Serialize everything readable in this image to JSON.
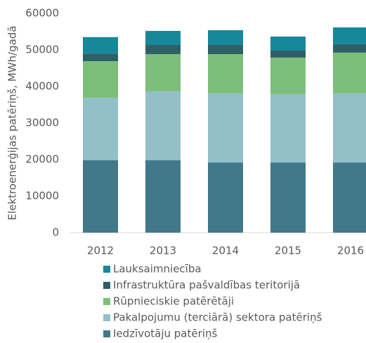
{
  "chart_data": {
    "type": "stacked_bar",
    "y_label": "Elektroenerģijas patēriņš, MWh/gadā",
    "categories": [
      "2012",
      "2013",
      "2014",
      "2015",
      "2016"
    ],
    "series": [
      {
        "name": "Iedzīvotāju patēriņš",
        "color": "#41788a",
        "values": [
          19800,
          19800,
          19200,
          19200,
          19200
        ]
      },
      {
        "name": "Pakalpojumu (terciārā) sektora patēriņš",
        "color": "#93bfc9",
        "values": [
          17100,
          18850,
          18900,
          18700,
          18900
        ]
      },
      {
        "name": "Rūpnieciskie patērētāji",
        "color": "#7dbf7a",
        "values": [
          10000,
          10200,
          10750,
          10000,
          11150
        ]
      },
      {
        "name": "Infrastruktūra pašvaldības teritorijā",
        "color": "#2f5f67",
        "values": [
          2100,
          2500,
          2500,
          1900,
          2300
        ]
      },
      {
        "name": "Lauksaimniecība",
        "color": "#17879a",
        "values": [
          4500,
          3850,
          4050,
          3850,
          4600
        ]
      }
    ],
    "ylim": [
      0,
      60000
    ],
    "yticks": [
      0,
      10000,
      20000,
      30000,
      40000,
      50000,
      60000
    ],
    "grid": false
  }
}
